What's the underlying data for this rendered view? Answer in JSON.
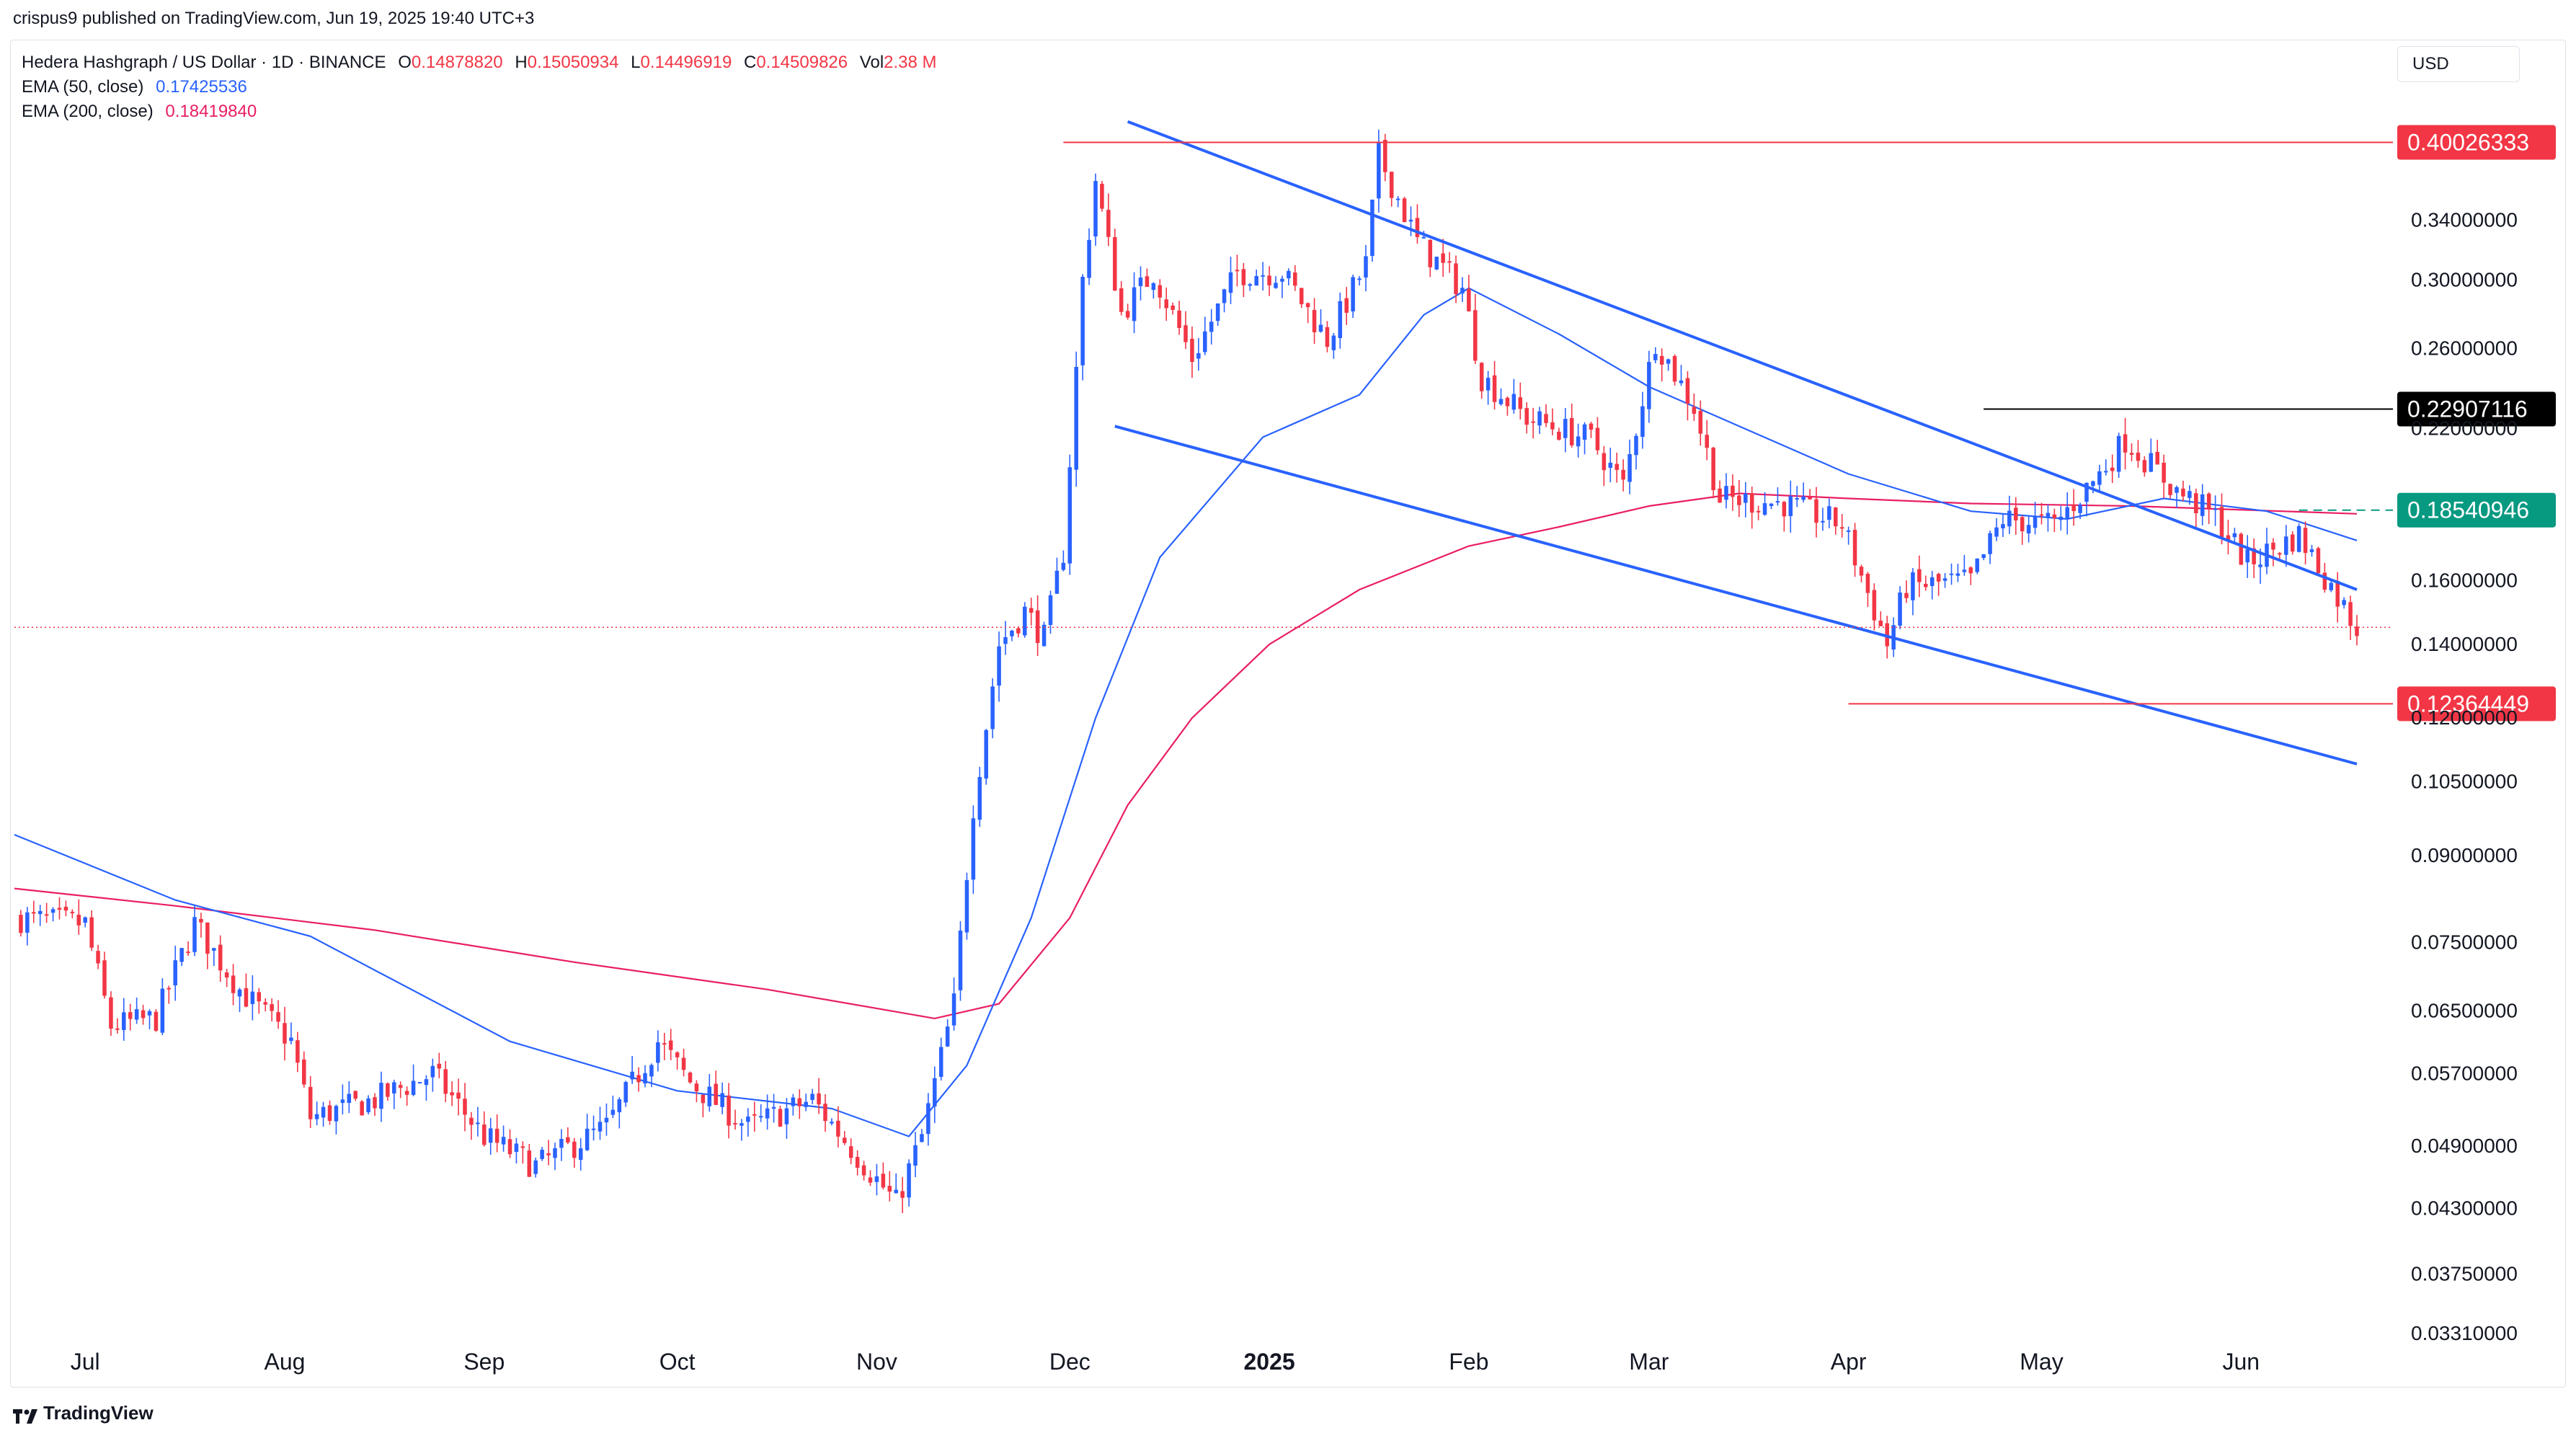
{
  "header": {
    "publisher": "crispus9 published on TradingView.com, Jun 19, 2025 19:40 UTC+3"
  },
  "legend": {
    "symbol": "Hedera Hashgraph / US Dollar · 1D · BINANCE",
    "o_label": "O",
    "o_value": "0.14878820",
    "h_label": "H",
    "h_value": "0.15050934",
    "l_label": "L",
    "l_value": "0.14496919",
    "c_label": "C",
    "c_value": "0.14509826",
    "vol_label": "Vol",
    "vol_value": "2.38 M",
    "ema50_label": "EMA (50, close)",
    "ema50_value": "0.17425536",
    "ema200_label": "EMA (200, close)",
    "ema200_value": "0.18419840"
  },
  "currency": "USD",
  "footer": {
    "brand": "TradingView"
  },
  "chart_data": {
    "type": "candlestick",
    "title": "Hedera Hashgraph / US Dollar · 1D · BINANCE",
    "y_scale": "log",
    "ylim": [
      0.0331,
      0.43
    ],
    "y_ticks": [
      "0.34000000",
      "0.30000000",
      "0.26000000",
      "0.22000000",
      "0.16000000",
      "0.14000000",
      "0.12000000",
      "0.10500000",
      "0.09000000",
      "0.07500000",
      "0.06500000",
      "0.05700000",
      "0.04900000",
      "0.04300000",
      "0.03750000",
      "0.03310000"
    ],
    "x_ticks": [
      "Jul",
      "Aug",
      "Sep",
      "Oct",
      "Nov",
      "Dec",
      "2025",
      "Feb",
      "Mar",
      "Apr",
      "May",
      "Jun"
    ],
    "x_range": [
      "2024-06-20",
      "2025-06-19"
    ],
    "colors": {
      "up": "#2962ff",
      "down": "#f23645",
      "ema50": "#2962ff",
      "ema200": "#e91e63",
      "trend": "#2962ff",
      "level": "#f23645",
      "neutral_level": "#000000"
    },
    "price_path": [
      [
        "2024-06-20",
        0.079
      ],
      [
        "2024-07-01",
        0.078
      ],
      [
        "2024-07-05",
        0.063
      ],
      [
        "2024-07-12",
        0.064
      ],
      [
        "2024-07-18",
        0.078
      ],
      [
        "2024-07-25",
        0.068
      ],
      [
        "2024-08-02",
        0.061
      ],
      [
        "2024-08-05",
        0.052
      ],
      [
        "2024-08-15",
        0.054
      ],
      [
        "2024-08-24",
        0.057
      ],
      [
        "2024-09-01",
        0.05
      ],
      [
        "2024-09-09",
        0.047
      ],
      [
        "2024-09-20",
        0.051
      ],
      [
        "2024-09-28",
        0.061
      ],
      [
        "2024-10-03",
        0.056
      ],
      [
        "2024-10-12",
        0.051
      ],
      [
        "2024-10-22",
        0.054
      ],
      [
        "2024-10-29",
        0.048
      ],
      [
        "2024-11-04",
        0.0435
      ],
      [
        "2024-11-08",
        0.05
      ],
      [
        "2024-11-13",
        0.066
      ],
      [
        "2024-11-16",
        0.1
      ],
      [
        "2024-11-20",
        0.14
      ],
      [
        "2024-11-24",
        0.15
      ],
      [
        "2024-11-27",
        0.142
      ],
      [
        "2024-11-30",
        0.17
      ],
      [
        "2024-12-03",
        0.3
      ],
      [
        "2024-12-05",
        0.37
      ],
      [
        "2024-12-09",
        0.28
      ],
      [
        "2024-12-14",
        0.305
      ],
      [
        "2024-12-20",
        0.255
      ],
      [
        "2024-12-27",
        0.305
      ],
      [
        "2025-01-03",
        0.305
      ],
      [
        "2025-01-10",
        0.265
      ],
      [
        "2025-01-16",
        0.31
      ],
      [
        "2025-01-18",
        0.39
      ],
      [
        "2025-01-24",
        0.325
      ],
      [
        "2025-01-31",
        0.295
      ],
      [
        "2025-02-03",
        0.245
      ],
      [
        "2025-02-10",
        0.225
      ],
      [
        "2025-02-20",
        0.215
      ],
      [
        "2025-02-25",
        0.195
      ],
      [
        "2025-03-02",
        0.265
      ],
      [
        "2025-03-08",
        0.23
      ],
      [
        "2025-03-12",
        0.19
      ],
      [
        "2025-03-22",
        0.188
      ],
      [
        "2025-03-31",
        0.18
      ],
      [
        "2025-04-07",
        0.14
      ],
      [
        "2025-04-10",
        0.158
      ],
      [
        "2025-04-20",
        0.16
      ],
      [
        "2025-04-25",
        0.182
      ],
      [
        "2025-05-03",
        0.18
      ],
      [
        "2025-05-10",
        0.2
      ],
      [
        "2025-05-14",
        0.215
      ],
      [
        "2025-05-22",
        0.193
      ],
      [
        "2025-05-28",
        0.183
      ],
      [
        "2025-06-02",
        0.166
      ],
      [
        "2025-06-10",
        0.176
      ],
      [
        "2025-06-19",
        0.145
      ]
    ],
    "ema50_path": [
      [
        "2024-06-20",
        0.094
      ],
      [
        "2024-07-15",
        0.082
      ],
      [
        "2024-08-05",
        0.076
      ],
      [
        "2024-09-05",
        0.061
      ],
      [
        "2024-10-01",
        0.055
      ],
      [
        "2024-10-25",
        0.053
      ],
      [
        "2024-11-06",
        0.05
      ],
      [
        "2024-11-15",
        0.058
      ],
      [
        "2024-11-25",
        0.079
      ],
      [
        "2024-12-05",
        0.12
      ],
      [
        "2024-12-15",
        0.168
      ],
      [
        "2024-12-31",
        0.216
      ],
      [
        "2025-01-15",
        0.236
      ],
      [
        "2025-01-25",
        0.279
      ],
      [
        "2025-02-01",
        0.295
      ],
      [
        "2025-02-15",
        0.268
      ],
      [
        "2025-03-01",
        0.24
      ],
      [
        "2025-03-15",
        0.221
      ],
      [
        "2025-04-01",
        0.2
      ],
      [
        "2025-04-20",
        0.185
      ],
      [
        "2025-05-05",
        0.182
      ],
      [
        "2025-05-20",
        0.19
      ],
      [
        "2025-06-05",
        0.185
      ],
      [
        "2025-06-19",
        0.174
      ]
    ],
    "ema200_path": [
      [
        "2024-06-20",
        0.084
      ],
      [
        "2024-07-15",
        0.081
      ],
      [
        "2024-08-15",
        0.077
      ],
      [
        "2024-09-15",
        0.072
      ],
      [
        "2024-10-15",
        0.068
      ],
      [
        "2024-11-10",
        0.064
      ],
      [
        "2024-11-20",
        0.066
      ],
      [
        "2024-12-01",
        0.079
      ],
      [
        "2024-12-10",
        0.1
      ],
      [
        "2024-12-20",
        0.12
      ],
      [
        "2025-01-01",
        0.14
      ],
      [
        "2025-01-15",
        0.157
      ],
      [
        "2025-02-01",
        0.172
      ],
      [
        "2025-02-15",
        0.179
      ],
      [
        "2025-03-01",
        0.187
      ],
      [
        "2025-03-15",
        0.192
      ],
      [
        "2025-04-01",
        0.19
      ],
      [
        "2025-04-20",
        0.188
      ],
      [
        "2025-05-15",
        0.187
      ],
      [
        "2025-06-19",
        0.184
      ]
    ],
    "trendlines": [
      {
        "from": [
          "2024-12-10",
          0.418
        ],
        "to": [
          "2025-06-19",
          0.157
        ]
      },
      {
        "from": [
          "2024-12-08",
          0.221
        ],
        "to": [
          "2025-06-19",
          0.109
        ]
      }
    ],
    "levels": [
      {
        "label": "0.40026333",
        "value": 0.40026,
        "from": "2024-11-30",
        "style": "red"
      },
      {
        "label": "0.22907116",
        "value": 0.22907,
        "from": "2025-04-22",
        "style": "black"
      },
      {
        "label": "0.12364449",
        "value": 0.12364,
        "from": "2025-04-01",
        "style": "red"
      },
      {
        "label": "0.18540946",
        "value": 0.18541,
        "from": "2025-06-10",
        "style": "green"
      },
      {
        "value": 0.14509826,
        "from": "2024-06-20",
        "style": "current"
      }
    ],
    "grid": false
  }
}
